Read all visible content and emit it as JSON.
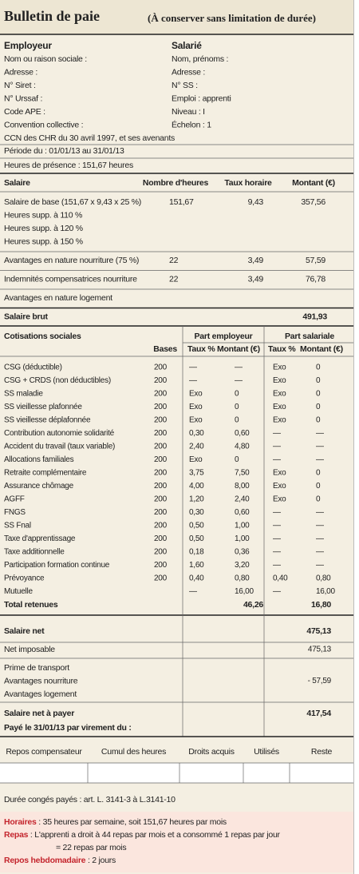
{
  "header": {
    "title": "Bulletin de paie",
    "subtitle": "(À conserver sans limitation de durée)"
  },
  "employer": {
    "heading": "Employeur",
    "lines": [
      "Nom ou raison sociale :",
      "Adresse :",
      "N° Siret :",
      "N° Urssaf :",
      "Code APE :",
      "Convention collective :",
      "CCN des CHR du 30 avril 1997, et ses avenants"
    ]
  },
  "employee": {
    "heading": "Salarié",
    "lines": [
      "Nom, prénoms :",
      "Adresse :",
      "N° SS :",
      "Emploi : apprenti",
      "Niveau : I",
      "Échelon : 1"
    ]
  },
  "period": "Période du : 01/01/13 au 31/01/13",
  "hours": "Heures de présence : 151,67 heures",
  "salary": {
    "headers": {
      "label": "Salaire",
      "hours": "Nombre d'heures",
      "rate": "Taux horaire",
      "amount": "Montant (€)"
    },
    "groups": [
      [
        {
          "label": "Salaire de base (151,67 x 9,43 x 25 %)",
          "hours": "151,67",
          "rate": "9,43",
          "amount": "357,56"
        },
        {
          "label": "Heures supp. à 110 %"
        },
        {
          "label": "Heures supp. à 120 %"
        },
        {
          "label": "Heures supp. à 150 %"
        }
      ],
      [
        {
          "label": "Avantages en nature nourriture (75 %)",
          "hours": "22",
          "rate": "3,49",
          "amount": "57,59"
        }
      ],
      [
        {
          "label": "Indemnités compensatrices nourriture",
          "hours": "22",
          "rate": "3,49",
          "amount": "76,78"
        }
      ],
      [
        {
          "label": "Avantages en nature logement"
        }
      ]
    ],
    "gross": {
      "label": "Salaire brut",
      "amount": "491,93"
    }
  },
  "contributions": {
    "headers": {
      "label": "Cotisations sociales",
      "base": "Bases",
      "employer": "Part employeur",
      "employee": "Part salariale",
      "emp_rate": "Taux %",
      "emp_amount": "Montant (€)",
      "sal_rate": "Taux %",
      "sal_amount": "Montant (€)"
    },
    "rows": [
      [
        "CSG (déductible)",
        "200",
        "—",
        "—",
        "Exo",
        "0"
      ],
      [
        "CSG + CRDS (non déductibles)",
        "200",
        "—",
        "—",
        "Exo",
        "0"
      ],
      [
        "SS maladie",
        "200",
        "Exo",
        "0",
        "Exo",
        "0"
      ],
      [
        "SS vieillesse plafonnée",
        "200",
        "Exo",
        "0",
        "Exo",
        "0"
      ],
      [
        "SS vieillesse déplafonnée",
        "200",
        "Exo",
        "0",
        "Exo",
        "0"
      ],
      [
        "Contribution autonomie solidarité",
        "200",
        "0,30",
        "0,60",
        "—",
        "—"
      ],
      [
        "Accident du travail (taux variable)",
        "200",
        "2,40",
        "4,80",
        "—",
        "—"
      ],
      [
        "Allocations familiales",
        "200",
        "Exo",
        "0",
        "—",
        "—"
      ],
      [
        "Retraite complémentaire",
        "200",
        "3,75",
        "7,50",
        "Exo",
        "0"
      ],
      [
        "Assurance chômage",
        "200",
        "4,00",
        "8,00",
        "Exo",
        "0"
      ],
      [
        "AGFF",
        "200",
        "1,20",
        "2,40",
        "Exo",
        "0"
      ],
      [
        "FNGS",
        "200",
        "0,30",
        "0,60",
        "—",
        "—"
      ],
      [
        "SS Fnal",
        "200",
        "0,50",
        "1,00",
        "—",
        "—"
      ],
      [
        "Taxe d'apprentissage",
        "200",
        "0,50",
        "1,00",
        "—",
        "—"
      ],
      [
        "Taxe additionnelle",
        "200",
        "0,18",
        "0,36",
        "—",
        "—"
      ],
      [
        "Participation formation continue",
        "200",
        "1,60",
        "3,20",
        "—",
        "—"
      ],
      [
        "Prévoyance",
        "200",
        "0,40",
        "0,80",
        "0,40",
        "0,80"
      ],
      [
        "Mutuelle",
        null,
        "—",
        "16,00",
        "—",
        "16,00"
      ]
    ],
    "total": {
      "label": "Total retenues",
      "employer": "46,26",
      "employee": "16,80"
    }
  },
  "net": {
    "net": {
      "label": "Salaire net",
      "amount": "475,13"
    },
    "taxable": {
      "label": "Net imposable",
      "amount": "475,13"
    },
    "adjustments": [
      {
        "label": "Prime de transport"
      },
      {
        "label": "Avantages nourriture",
        "amount": "- 57,59"
      },
      {
        "label": "Avantages logement"
      }
    ],
    "to_pay": {
      "label": "Salaire net à payer",
      "amount": "417,54"
    },
    "payment": "Payé le 31/01/13 par virement du :"
  },
  "leave_table": {
    "headers": [
      "Repos compensateur",
      "Cumul des heures",
      "Droits acquis",
      "Utilisés",
      "Reste"
    ]
  },
  "leave_note": "Durée congés payés : art. L. 3141-3  à  L.3141-10",
  "notes": [
    {
      "label": "Horaires",
      "text": " : 35 heures par semaine, soit 151,67 heures par mois"
    },
    {
      "label": "Repas",
      "text": " : L'apprenti a droit à 44 repas par mois et a consommé 1 repas par jour",
      "continuation": "= 22 repas par mois"
    },
    {
      "label": "Repos hebdomadaire",
      "text": " : 2 jours"
    }
  ]
}
